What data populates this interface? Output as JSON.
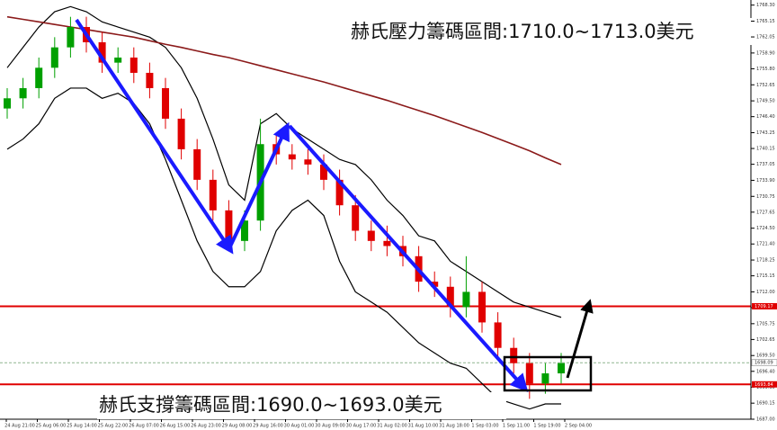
{
  "chart_data": {
    "type": "candlestick",
    "open": [
      1748,
      1750,
      1752,
      1756,
      1760,
      1764,
      1761,
      1757,
      1758,
      1755,
      1752,
      1746,
      1740,
      1734,
      1728,
      1722,
      1726,
      1741,
      1739,
      1738,
      1737,
      1734,
      1729,
      1724,
      1722,
      1721,
      1719,
      1714,
      1713,
      1709,
      1712,
      1706,
      1701,
      1698,
      1694,
      1696
    ],
    "high": [
      1752,
      1754,
      1758,
      1762,
      1766,
      1766,
      1763,
      1760,
      1760,
      1757,
      1754,
      1748,
      1742,
      1736,
      1730,
      1728,
      1746,
      1743,
      1741,
      1740,
      1739,
      1736,
      1731,
      1726,
      1725,
      1723,
      1721,
      1716,
      1715,
      1719,
      1714,
      1708,
      1703,
      1700,
      1698,
      1700
    ],
    "low": [
      1746,
      1748,
      1750,
      1754,
      1758,
      1759,
      1755,
      1755,
      1753,
      1750,
      1744,
      1738,
      1732,
      1726,
      1720,
      1720,
      1724,
      1737,
      1736,
      1735,
      1732,
      1727,
      1722,
      1720,
      1719,
      1717,
      1712,
      1711,
      1707,
      1707,
      1704,
      1699,
      1696,
      1691,
      1692,
      1694
    ],
    "close": [
      1750,
      1752,
      1756,
      1760,
      1764,
      1761,
      1757,
      1758,
      1755,
      1752,
      1746,
      1740,
      1734,
      1728,
      1722,
      1726,
      1741,
      1739,
      1738,
      1737,
      1734,
      1729,
      1724,
      1722,
      1721,
      1719,
      1714,
      1713,
      1709,
      1712,
      1706,
      1701,
      1698,
      1694,
      1696,
      1698
    ],
    "up_color": "#00a000",
    "down_color": "#e00000",
    "series": [
      {
        "color": "#000000",
        "values": [
          1756,
          1760,
          1764,
          1767,
          1768,
          1767,
          1765,
          1764,
          1763,
          1762,
          1760,
          1756,
          1750,
          1742,
          1733,
          1730,
          1745,
          1747,
          1744,
          1742,
          1740,
          1738,
          1737,
          1734,
          1730,
          1727,
          1723,
          1722,
          1718,
          1716,
          1714,
          1712,
          1710,
          1709,
          1708,
          1707
        ]
      },
      {
        "color": "#000000",
        "values": [
          1740,
          1742,
          1745,
          1750,
          1752,
          1752,
          1750,
          1751,
          1749,
          1745,
          1738,
          1730,
          1722,
          1716,
          1713,
          1713,
          1716,
          1724,
          1728,
          1730,
          1727,
          1718,
          1712,
          1710,
          1708,
          1705,
          1702,
          1700,
          1698,
          1697,
          1694,
          1691,
          1690,
          1689,
          1690,
          1690
        ]
      },
      {
        "color": "#8b1a1a",
        "values": [
          1766,
          1765.5,
          1765,
          1764.5,
          1764,
          1763.5,
          1763,
          1762.5,
          1762,
          1761.3,
          1760.6,
          1760,
          1759.3,
          1758.6,
          1758,
          1757.2,
          1756.4,
          1755.6,
          1754.8,
          1754,
          1753.2,
          1752.3,
          1751.4,
          1750.5,
          1749.6,
          1748.6,
          1747.6,
          1746.6,
          1745.5,
          1744.4,
          1743.3,
          1742.1,
          1740.9,
          1739.7,
          1738.3,
          1737
        ]
      }
    ],
    "ylim": [
      1687,
      1769.3
    ],
    "yticks": [
      {
        "value": 1768.3,
        "label": "1768.30"
      },
      1765.15,
      1762.05,
      {
        "value": 1758.9,
        "label": "1758.90"
      },
      {
        "value": 1755.8,
        "label": "1755.80"
      },
      1752.65,
      {
        "value": 1749.5,
        "label": "1749.50"
      },
      {
        "value": 1746.4,
        "label": "1746.40"
      },
      1743.25,
      1740.15,
      1737.05,
      {
        "value": 1733.9,
        "label": "1733.90"
      },
      1730.75,
      1727.65,
      {
        "value": 1724.5,
        "label": "1724.50"
      },
      {
        "value": 1721.4,
        "label": "1721.40"
      },
      1718.25,
      1715.15,
      {
        "value": 1712,
        "label": "1712.00"
      },
      {
        "value": 1708.9,
        "label": "1708.90"
      },
      1705.75,
      1702.65,
      {
        "value": 1699.5,
        "label": "1699.50"
      },
      {
        "value": 1696.4,
        "label": "1696.40"
      },
      {
        "value": 1693.3,
        "label": "1693.30"
      },
      1690.15,
      {
        "value": 1687,
        "label": "1687.00"
      }
    ],
    "x_labels": [
      "24 Aug 21:00",
      "25 Aug 06:00",
      "25 Aug 14:00",
      "25 Aug 22:00",
      "26 Aug 07:00",
      "26 Aug 15:00",
      "26 Aug 23:00",
      "29 Aug 08:00",
      "29 Aug 16:00",
      "30 Aug 01:00",
      "30 Aug 09:00",
      "30 Aug 17:00",
      "31 Aug 02:00",
      "31 Aug 10:00",
      "31 Aug 18:00",
      "1 Sep 03:00",
      "1 Sep 11:00",
      "1 Sep 19:00",
      "2 Sep 04:00"
    ],
    "hlines": [
      {
        "value": 1709.17,
        "color": "#e00000"
      },
      {
        "value": 1693.84,
        "color": "#e00000"
      }
    ],
    "current_price": 1698.09,
    "annotations": [
      "赫氏壓力籌碼區間:1710.0~1713.0美元",
      "赫氏支撐籌碼區間:1690.0~1693.0美元"
    ]
  }
}
